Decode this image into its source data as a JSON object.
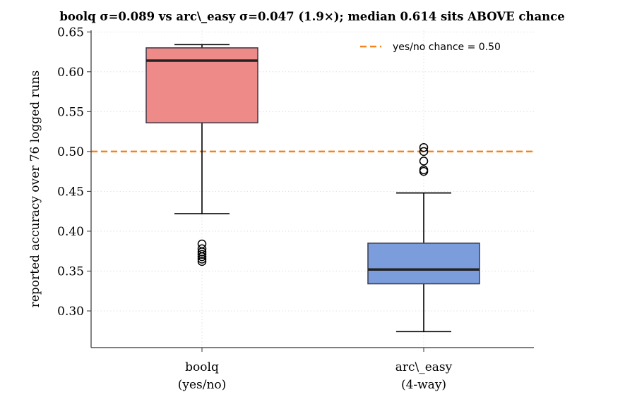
{
  "chart_data": {
    "type": "box",
    "title": "boolq σ=0.089 vs arc\\_easy σ=0.047 (1.9×); median 0.614 sits ABOVE chance",
    "ylabel": "reported accuracy over 76 logged runs",
    "ylim": [
      0.254,
      0.652
    ],
    "yticks": [
      0.3,
      0.35,
      0.4,
      0.45,
      0.5,
      0.55,
      0.6,
      0.65
    ],
    "ytick_labels": [
      "0.30",
      "0.35",
      "0.40",
      "0.45",
      "0.50",
      "0.55",
      "0.60",
      "0.65"
    ],
    "grid": true,
    "categories": [
      {
        "line1": "boolq",
        "line2": "(yes/no)"
      },
      {
        "line1": "arc\\_easy",
        "line2": "(4-way)"
      }
    ],
    "boxes": [
      {
        "category": "boolq",
        "color": "#ee8a87",
        "q1": 0.536,
        "median": 0.614,
        "q3": 0.63,
        "whisker_low": 0.422,
        "whisker_high": 0.634,
        "outliers": [
          0.384,
          0.378,
          0.374,
          0.371,
          0.368,
          0.365,
          0.362
        ]
      },
      {
        "category": "arc_easy",
        "color": "#7b9ddb",
        "q1": 0.334,
        "median": 0.352,
        "q3": 0.385,
        "whisker_low": 0.274,
        "whisker_high": 0.448,
        "outliers": [
          0.505,
          0.5,
          0.488,
          0.477,
          0.475
        ]
      }
    ],
    "reference_line": {
      "y": 0.5,
      "label": "yes/no chance = 0.50",
      "color": "#f5841f",
      "style": "dashed"
    },
    "legend": {
      "position": "top-right"
    }
  }
}
